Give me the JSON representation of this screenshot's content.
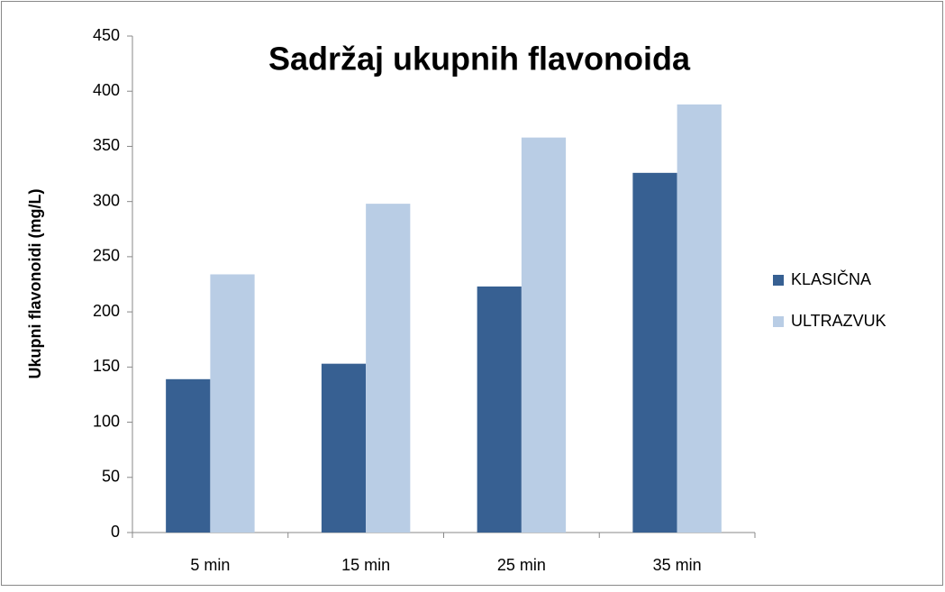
{
  "chart_data": {
    "type": "bar",
    "title": "Sadržaj ukupnih flavonoida",
    "y_label": "Ukupni flavonoidi (mg/L)",
    "categories": [
      "5 min",
      "15 min",
      "25 min",
      "35 min"
    ],
    "series": [
      {
        "name": "KLASIČNA",
        "color": "#376092",
        "values": [
          139,
          153,
          223,
          326
        ]
      },
      {
        "name": "ULTRAZVUK",
        "color": "#b9cde5",
        "values": [
          234,
          298,
          358,
          388
        ]
      }
    ],
    "ylim": [
      0,
      450
    ],
    "yticks": [
      0,
      50,
      100,
      150,
      200,
      250,
      300,
      350,
      400,
      450
    ],
    "grid": false,
    "legend": "right"
  }
}
